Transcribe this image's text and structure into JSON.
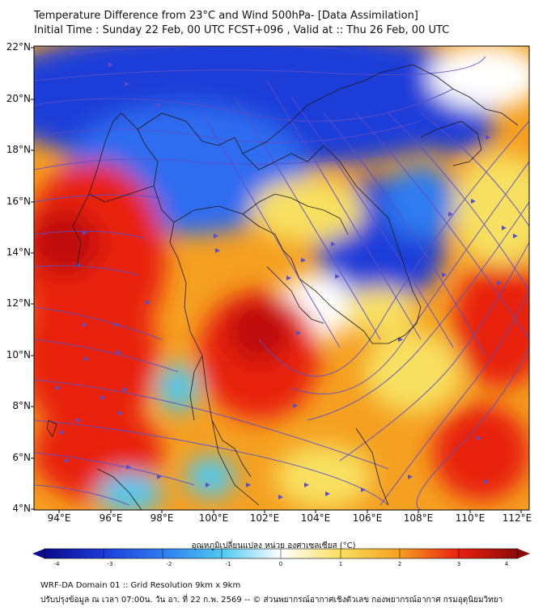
{
  "header": {
    "title_line1": "Temperature Difference from 23°C and Wind 500hPa- [Data Assimilation]",
    "title_line2": "Initial Time : Sunday 22 Feb, 00 UTC FCST+096 , Valid at ::  Thu 26 Feb, 00 UTC"
  },
  "map": {
    "lat_labels": [
      "22°N",
      "20°N",
      "18°N",
      "16°N",
      "14°N",
      "12°N",
      "10°N",
      "8°N",
      "6°N",
      "4°N"
    ],
    "lon_labels": [
      "94°E",
      "96°E",
      "98°E",
      "100°E",
      "102°E",
      "104°E",
      "106°E",
      "108°E",
      "110°E",
      "112°E"
    ],
    "streamline_color": "#5a4fc8",
    "border_color": "#1a1a1a"
  },
  "colorbar": {
    "title": "อุณหภูมิเปลี่ยนแปลง หน่วย องศาเซลเซียส (°C)",
    "ticks": [
      "-4",
      "-3",
      "-2",
      "-1",
      "0",
      "1",
      "2",
      "3",
      "4"
    ],
    "colors": [
      "#0a0a8c",
      "#1c3cd8",
      "#2f7cf0",
      "#4fc8f0",
      "#ffffff",
      "#f8e060",
      "#f5a020",
      "#e82010",
      "#8c0a0a"
    ]
  },
  "footer": {
    "line1": "WRF-DA Domain 01 :: Grid Resolution 9km x 9km",
    "line2": "ปรับปรุงข้อมูล ณ เวลา 07:00น. วัน อา. ที่ 22 ก.พ. 2569 -- © ส่วนพยากรณ์อากาศเชิงตัวเลข กองพยากรณ์อากาศ กรมอุตุนิยมวิทยา"
  }
}
